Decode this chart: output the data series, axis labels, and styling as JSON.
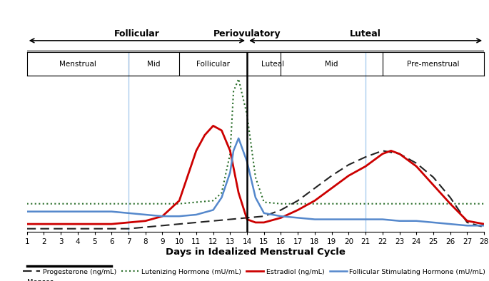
{
  "title": "Days in Idealized Menstrual Cycle",
  "xlim": [
    1,
    28
  ],
  "x_ticks": [
    1,
    2,
    3,
    4,
    5,
    6,
    7,
    8,
    9,
    10,
    11,
    12,
    13,
    14,
    15,
    16,
    17,
    18,
    19,
    20,
    21,
    22,
    23,
    24,
    25,
    26,
    27,
    28
  ],
  "vertical_line_x": 14,
  "light_blue_vlines": [
    7,
    21
  ],
  "estradiol_color": "#cc0000",
  "fsh_color": "#5588cc",
  "lh_color": "#2a6e2a",
  "progesterone_color": "#222222",
  "sub_dividers": [
    7,
    10,
    16,
    22
  ],
  "sub_labels": [
    {
      "label": "Menstrual",
      "x": 3.5
    },
    {
      "label": "Mid",
      "x": 8.5
    },
    {
      "label": "Follicular",
      "x": 12.0
    },
    {
      "label": "Luteal",
      "x": 15.5
    },
    {
      "label": "Mid",
      "x": 19.0
    },
    {
      "label": "Pre-menstrual",
      "x": 25.0
    }
  ],
  "estradiol_x": [
    1,
    2,
    3,
    4,
    5,
    6,
    7,
    8,
    9,
    10,
    11,
    11.5,
    12,
    12.5,
    13,
    13.5,
    14,
    14.5,
    15,
    16,
    17,
    18,
    19,
    20,
    21,
    22,
    22.5,
    23,
    24,
    25,
    26,
    27,
    28
  ],
  "estradiol_y": [
    0.05,
    0.05,
    0.05,
    0.05,
    0.05,
    0.05,
    0.06,
    0.07,
    0.1,
    0.2,
    0.52,
    0.62,
    0.68,
    0.65,
    0.52,
    0.25,
    0.08,
    0.06,
    0.06,
    0.09,
    0.14,
    0.2,
    0.28,
    0.36,
    0.42,
    0.5,
    0.52,
    0.5,
    0.42,
    0.3,
    0.18,
    0.07,
    0.05
  ],
  "fsh_x": [
    1,
    2,
    3,
    4,
    5,
    6,
    7,
    8,
    9,
    10,
    11,
    12,
    12.5,
    13,
    13.2,
    13.5,
    14,
    14.5,
    15,
    16,
    17,
    18,
    19,
    20,
    21,
    22,
    23,
    24,
    25,
    26,
    27,
    28
  ],
  "fsh_y": [
    0.13,
    0.13,
    0.13,
    0.13,
    0.13,
    0.13,
    0.12,
    0.11,
    0.1,
    0.1,
    0.11,
    0.14,
    0.22,
    0.38,
    0.52,
    0.6,
    0.45,
    0.22,
    0.12,
    0.1,
    0.09,
    0.08,
    0.08,
    0.08,
    0.08,
    0.08,
    0.07,
    0.07,
    0.06,
    0.05,
    0.04,
    0.04
  ],
  "lh_x": [
    1,
    2,
    3,
    4,
    5,
    6,
    7,
    8,
    9,
    10,
    11,
    12,
    12.5,
    13,
    13.2,
    13.5,
    14,
    14.5,
    15,
    16,
    17,
    18,
    19,
    20,
    21,
    22,
    23,
    24,
    25,
    26,
    27,
    28
  ],
  "lh_y": [
    0.18,
    0.18,
    0.18,
    0.18,
    0.18,
    0.18,
    0.18,
    0.18,
    0.18,
    0.18,
    0.19,
    0.2,
    0.25,
    0.5,
    0.9,
    0.98,
    0.75,
    0.35,
    0.19,
    0.18,
    0.18,
    0.18,
    0.18,
    0.18,
    0.18,
    0.18,
    0.18,
    0.18,
    0.18,
    0.18,
    0.18,
    0.18
  ],
  "progesterone_x": [
    1,
    2,
    3,
    4,
    5,
    6,
    7,
    8,
    9,
    10,
    11,
    12,
    13,
    14,
    15,
    16,
    17,
    18,
    19,
    20,
    21,
    22,
    23,
    24,
    25,
    26,
    27,
    28
  ],
  "progesterone_y": [
    0.02,
    0.02,
    0.02,
    0.02,
    0.02,
    0.02,
    0.02,
    0.03,
    0.04,
    0.05,
    0.06,
    0.07,
    0.08,
    0.09,
    0.1,
    0.14,
    0.2,
    0.28,
    0.36,
    0.43,
    0.48,
    0.52,
    0.5,
    0.44,
    0.35,
    0.22,
    0.06,
    0.03
  ]
}
